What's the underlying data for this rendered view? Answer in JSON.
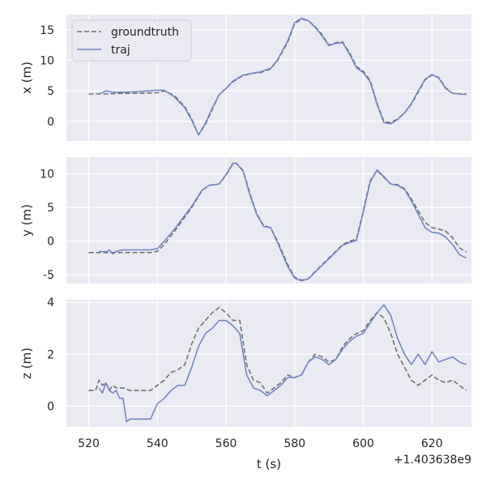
{
  "chart_data": {
    "type": "line",
    "xlabel": "t (s)",
    "x_offset_label": "+1.403638e9",
    "xlim": [
      513.5,
      631.5
    ],
    "x_ticks": [
      520,
      540,
      560,
      580,
      600,
      620
    ],
    "grid": true,
    "legend": {
      "placement": "top-left",
      "entries": [
        "groundtruth",
        "traj"
      ]
    },
    "series_styles": {
      "groundtruth": {
        "color": "#707070",
        "dash": "dashed"
      },
      "traj": {
        "color": "#6b82bf",
        "dash": "solid"
      }
    },
    "panels": [
      {
        "ylabel": "x (m)",
        "ylim": [
          -3.2,
          17.5
        ],
        "y_ticks": [
          0,
          5,
          10,
          15
        ],
        "series": [
          {
            "name": "groundtruth",
            "t": [
              520,
              525,
              530,
              535,
              540,
              542,
              545,
              548,
              550,
              552,
              554,
              556,
              558,
              560,
              562,
              565,
              568,
              570,
              573,
              575,
              578,
              580,
              582,
              584,
              586,
              588,
              590,
              592,
              594,
              596,
              598,
              600,
              602,
              604,
              606,
              608,
              610,
              612,
              614,
              616,
              618,
              620,
              622,
              624,
              626,
              628,
              630
            ],
            "values": [
              4.5,
              4.5,
              4.6,
              4.6,
              4.7,
              5.0,
              4.2,
              2.4,
              0.4,
              -2.2,
              -0.5,
              2.0,
              4.4,
              5.4,
              6.5,
              7.5,
              7.9,
              8.0,
              8.6,
              10.0,
              13.0,
              16.0,
              16.8,
              16.5,
              15.5,
              14.2,
              12.5,
              12.9,
              13.0,
              11.2,
              9.0,
              8.2,
              6.7,
              3.0,
              0.0,
              -0.2,
              0.4,
              1.4,
              2.8,
              4.8,
              6.8,
              7.6,
              7.2,
              5.5,
              4.6,
              4.5,
              4.5
            ]
          },
          {
            "name": "traj",
            "t": [
              523,
              525,
              527,
              530,
              535,
              540,
              542,
              545,
              548,
              550,
              552,
              554,
              556,
              558,
              560,
              562,
              565,
              568,
              570,
              573,
              575,
              578,
              580,
              582,
              584,
              586,
              588,
              590,
              592,
              594,
              596,
              598,
              600,
              602,
              604,
              606,
              608,
              610,
              612,
              614,
              616,
              618,
              620,
              622,
              624,
              626,
              628,
              630
            ],
            "values": [
              4.5,
              5.0,
              4.8,
              4.8,
              4.9,
              5.1,
              5.1,
              4.0,
              2.2,
              0.2,
              -2.2,
              -0.3,
              2.2,
              4.4,
              5.4,
              6.6,
              7.6,
              7.9,
              8.1,
              8.7,
              10.1,
              13.2,
              16.2,
              16.9,
              16.5,
              15.4,
              14.0,
              12.4,
              12.8,
              12.9,
              11.0,
              8.8,
              8.0,
              6.5,
              2.8,
              -0.2,
              -0.4,
              0.3,
              1.4,
              2.9,
              5.0,
              6.9,
              7.7,
              7.1,
              5.4,
              4.6,
              4.5,
              4.4
            ]
          }
        ]
      },
      {
        "ylabel": "y (m)",
        "ylim": [
          -6.3,
          12.5
        ],
        "y_ticks": [
          -5,
          0,
          5,
          10
        ],
        "series": [
          {
            "name": "groundtruth",
            "t": [
              520,
              525,
              530,
              535,
              538,
              540,
              542,
              545,
              550,
              553,
              555,
              558,
              560,
              562,
              563,
              565,
              567,
              569,
              571,
              573,
              575,
              578,
              580,
              582,
              584,
              586,
              588,
              590,
              592,
              594,
              596,
              598,
              600,
              602,
              604,
              606,
              608,
              610,
              612,
              614,
              616,
              618,
              620,
              622,
              624,
              626,
              628,
              630
            ],
            "values": [
              -1.7,
              -1.7,
              -1.7,
              -1.7,
              -1.7,
              -1.5,
              -0.5,
              1.5,
              5.0,
              7.5,
              8.3,
              8.5,
              9.8,
              11.5,
              11.6,
              10.5,
              7.0,
              4.0,
              2.3,
              2.0,
              0.0,
              -3.5,
              -5.4,
              -5.8,
              -5.6,
              -4.5,
              -3.5,
              -2.5,
              -1.5,
              -0.5,
              0.0,
              0.3,
              4.5,
              9.0,
              10.5,
              9.5,
              8.5,
              8.4,
              7.8,
              6.3,
              4.5,
              2.8,
              2.0,
              1.8,
              1.5,
              0.5,
              -1.0,
              -1.6
            ]
          },
          {
            "name": "traj",
            "t": [
              523,
              525,
              526,
              527,
              528,
              530,
              535,
              538,
              540,
              542,
              545,
              550,
              553,
              555,
              558,
              560,
              562,
              563,
              565,
              567,
              569,
              571,
              573,
              575,
              578,
              580,
              582,
              584,
              586,
              588,
              590,
              592,
              594,
              596,
              598,
              600,
              602,
              604,
              606,
              608,
              610,
              612,
              614,
              616,
              618,
              620,
              622,
              624,
              626,
              628,
              630
            ],
            "values": [
              -1.5,
              -1.6,
              -1.3,
              -1.9,
              -1.5,
              -1.3,
              -1.3,
              -1.3,
              -1.1,
              0.0,
              1.8,
              5.2,
              7.6,
              8.3,
              8.5,
              9.9,
              11.6,
              11.6,
              10.4,
              6.8,
              3.9,
              2.2,
              2.0,
              -0.2,
              -3.8,
              -5.5,
              -5.9,
              -5.6,
              -4.6,
              -3.6,
              -2.6,
              -1.6,
              -0.6,
              -0.2,
              0.1,
              4.3,
              8.8,
              10.6,
              9.6,
              8.5,
              8.3,
              7.7,
              6.0,
              4.0,
              2.0,
              1.3,
              1.2,
              0.6,
              -0.5,
              -2.0,
              -2.5
            ]
          }
        ]
      },
      {
        "ylabel": "z (m)",
        "ylim": [
          -0.8,
          4.1
        ],
        "y_ticks": [
          0,
          2,
          4
        ],
        "series": [
          {
            "name": "groundtruth",
            "t": [
              520,
              522,
              523,
              524,
              525,
              526,
              527,
              528,
              530,
              532,
              534,
              536,
              538,
              540,
              542,
              544,
              546,
              548,
              550,
              552,
              554,
              556,
              558,
              560,
              562,
              564,
              566,
              568,
              570,
              572,
              574,
              576,
              578,
              580,
              582,
              584,
              586,
              588,
              590,
              592,
              594,
              596,
              598,
              600,
              602,
              604,
              606,
              608,
              610,
              612,
              614,
              616,
              618,
              620,
              622,
              624,
              626,
              628,
              630
            ],
            "values": [
              0.6,
              0.6,
              1.0,
              0.8,
              0.9,
              0.6,
              0.8,
              0.7,
              0.7,
              0.6,
              0.6,
              0.6,
              0.6,
              0.8,
              1.0,
              1.3,
              1.4,
              1.6,
              2.4,
              3.0,
              3.3,
              3.6,
              3.8,
              3.6,
              3.3,
              3.3,
              1.6,
              1.0,
              0.9,
              0.5,
              0.7,
              0.9,
              1.2,
              1.1,
              1.2,
              1.7,
              2.0,
              1.9,
              1.7,
              1.8,
              2.3,
              2.6,
              2.8,
              2.9,
              3.3,
              3.6,
              3.4,
              2.8,
              2.0,
              1.5,
              1.0,
              0.8,
              1.0,
              1.2,
              1.0,
              0.9,
              1.0,
              0.8,
              0.6
            ]
          },
          {
            "name": "traj",
            "t": [
              523,
              524,
              525,
              526,
              527,
              528,
              529,
              530,
              531,
              532,
              534,
              536,
              538,
              540,
              542,
              544,
              546,
              548,
              550,
              552,
              554,
              556,
              558,
              560,
              562,
              564,
              566,
              568,
              570,
              572,
              574,
              576,
              578,
              580,
              582,
              584,
              586,
              588,
              590,
              592,
              594,
              596,
              598,
              600,
              602,
              604,
              606,
              608,
              610,
              612,
              614,
              616,
              618,
              620,
              622,
              624,
              626,
              628,
              630
            ],
            "values": [
              0.7,
              0.5,
              0.9,
              0.6,
              0.5,
              0.6,
              0.3,
              0.3,
              -0.6,
              -0.5,
              -0.5,
              -0.5,
              -0.5,
              0.1,
              0.3,
              0.6,
              0.8,
              0.8,
              1.5,
              2.3,
              2.8,
              3.0,
              3.3,
              3.3,
              3.1,
              2.8,
              1.2,
              0.7,
              0.6,
              0.4,
              0.6,
              0.8,
              1.1,
              1.1,
              1.2,
              1.7,
              1.9,
              1.8,
              1.6,
              1.8,
              2.2,
              2.5,
              2.7,
              2.8,
              3.2,
              3.6,
              3.9,
              3.5,
              2.6,
              2.0,
              1.6,
              2.0,
              1.6,
              2.1,
              1.7,
              1.8,
              1.9,
              1.7,
              1.6
            ]
          }
        ]
      }
    ]
  }
}
